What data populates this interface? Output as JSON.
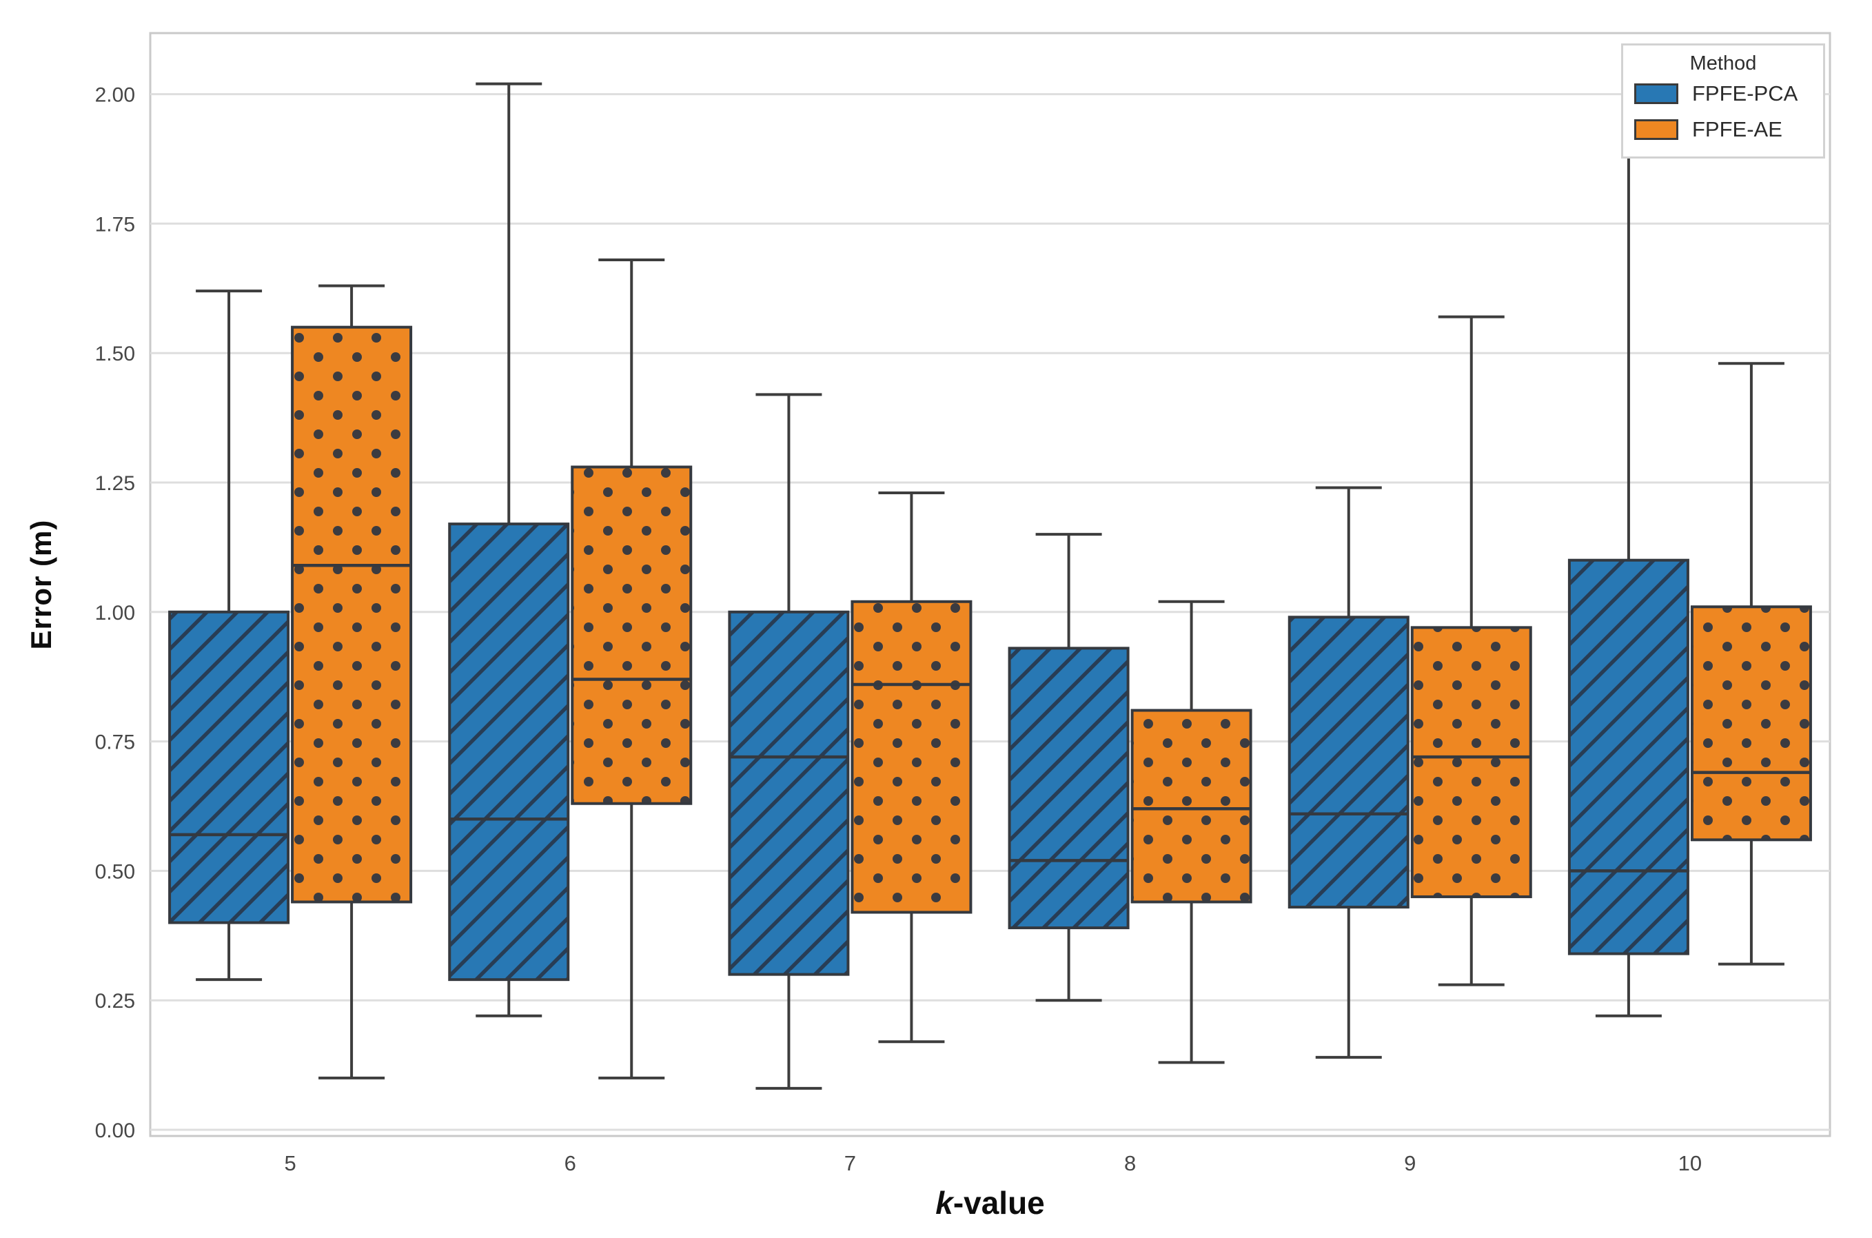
{
  "chart_data": {
    "type": "boxplot",
    "title": "",
    "xlabel": "k-value",
    "xlabel_italic_part": "k",
    "xlabel_rest": "-value",
    "ylabel": "Error (m)",
    "categories": [
      "5",
      "6",
      "7",
      "8",
      "9",
      "10"
    ],
    "y_tick_labels": [
      "0.00",
      "0.25",
      "0.50",
      "0.75",
      "1.00",
      "1.25",
      "1.50",
      "1.75",
      "2.00"
    ],
    "ylim": [
      -0.012,
      2.118
    ],
    "grid": "horizontal",
    "legend": {
      "title": "Method",
      "position": "upper-right"
    },
    "series": [
      {
        "name": "FPFE-PCA",
        "color": "#2878b4",
        "hatch": "diagonal",
        "boxes": [
          {
            "k": "5",
            "whisker_low": 0.29,
            "q1": 0.4,
            "median": 0.57,
            "q3": 1.0,
            "whisker_high": 1.62
          },
          {
            "k": "6",
            "whisker_low": 0.22,
            "q1": 0.29,
            "median": 0.6,
            "q3": 1.17,
            "whisker_high": 2.02
          },
          {
            "k": "7",
            "whisker_low": 0.08,
            "q1": 0.3,
            "median": 0.72,
            "q3": 1.0,
            "whisker_high": 1.42
          },
          {
            "k": "8",
            "whisker_low": 0.25,
            "q1": 0.39,
            "median": 0.52,
            "q3": 0.93,
            "whisker_high": 1.15
          },
          {
            "k": "9",
            "whisker_low": 0.14,
            "q1": 0.43,
            "median": 0.61,
            "q3": 0.99,
            "whisker_high": 1.24
          },
          {
            "k": "10",
            "whisker_low": 0.22,
            "q1": 0.34,
            "median": 0.5,
            "q3": 1.1,
            "whisker_high": 1.93
          }
        ]
      },
      {
        "name": "FPFE-AE",
        "color": "#ee8722",
        "hatch": "dots",
        "boxes": [
          {
            "k": "5",
            "whisker_low": 0.1,
            "q1": 0.44,
            "median": 1.09,
            "q3": 1.55,
            "whisker_high": 1.63
          },
          {
            "k": "6",
            "whisker_low": 0.1,
            "q1": 0.63,
            "median": 0.87,
            "q3": 1.28,
            "whisker_high": 1.68
          },
          {
            "k": "7",
            "whisker_low": 0.17,
            "q1": 0.42,
            "median": 0.86,
            "q3": 1.02,
            "whisker_high": 1.23
          },
          {
            "k": "8",
            "whisker_low": 0.13,
            "q1": 0.44,
            "median": 0.62,
            "q3": 0.81,
            "whisker_high": 1.02
          },
          {
            "k": "9",
            "whisker_low": 0.28,
            "q1": 0.45,
            "median": 0.72,
            "q3": 0.97,
            "whisker_high": 1.57
          },
          {
            "k": "10",
            "whisker_low": 0.32,
            "q1": 0.56,
            "median": 0.69,
            "q3": 1.01,
            "whisker_high": 1.48
          }
        ]
      }
    ]
  },
  "appearance": {
    "pca_fill": "#2878b4",
    "ae_fill": "#ee8722",
    "box_edge": "#35393f",
    "whisker": "#3d3d3d",
    "hatch": "#283344",
    "gridline": "#dedede",
    "spine": "#c9c9c9",
    "tick_text": "#474747",
    "axis_label_text": "#0d0d0d",
    "legend_border": "#d2d2d2",
    "background": "#ffffff"
  }
}
